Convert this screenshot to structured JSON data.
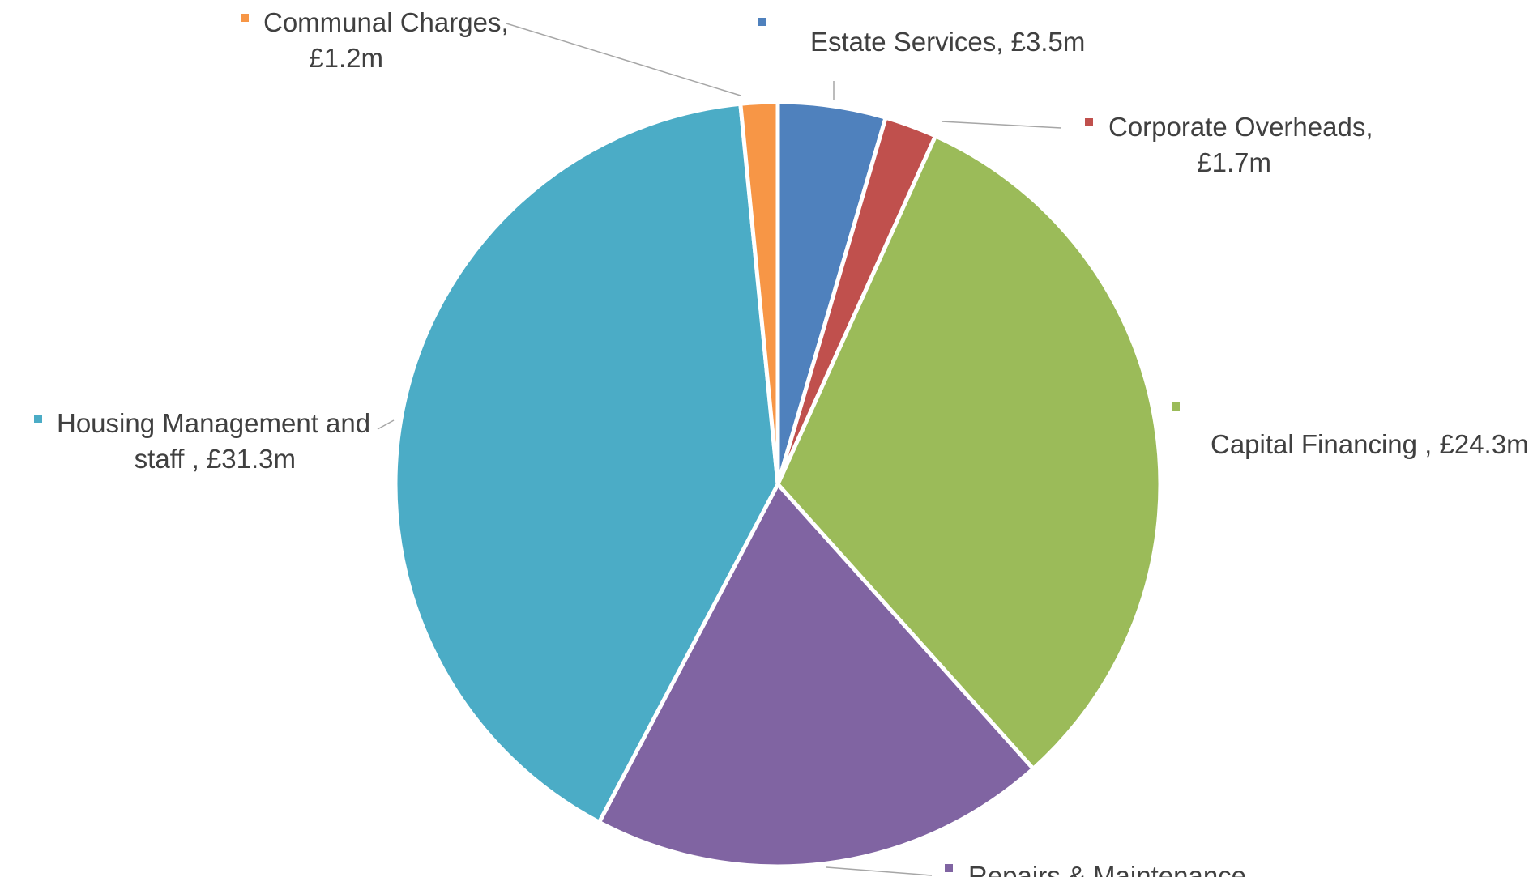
{
  "chart_data": {
    "type": "pie",
    "title": "",
    "start_angle_deg": 0,
    "direction": "clockwise",
    "slices": [
      {
        "name": "Estate Services",
        "value": 3.5,
        "label_lines": [
          "Estate Services, £3.5m"
        ],
        "color": "#4F81BD"
      },
      {
        "name": "Corporate Overheads",
        "value": 1.7,
        "label_lines": [
          "Corporate Overheads,",
          "£1.7m"
        ],
        "color": "#C0504D"
      },
      {
        "name": "Capital Financing",
        "value": 24.3,
        "label_lines": [
          "Capital Financing  , £24.3m"
        ],
        "color": "#9BBB59"
      },
      {
        "name": "Repairs & Maintenance",
        "value": 14.9,
        "label_lines": [
          "Repairs & Maintenance,"
        ],
        "color": "#8064A2"
      },
      {
        "name": "Housing Management and staff",
        "value": 31.3,
        "label_lines": [
          "Housing Management and",
          "staff , £31.3m"
        ],
        "color": "#4BACC6"
      },
      {
        "name": "Communal Charges",
        "value": 1.2,
        "label_lines": [
          "Communal Charges,",
          "£1.2m"
        ],
        "color": "#F79646"
      }
    ],
    "label_line_color": "#A6A6A6",
    "label_text_color": "#404040"
  }
}
